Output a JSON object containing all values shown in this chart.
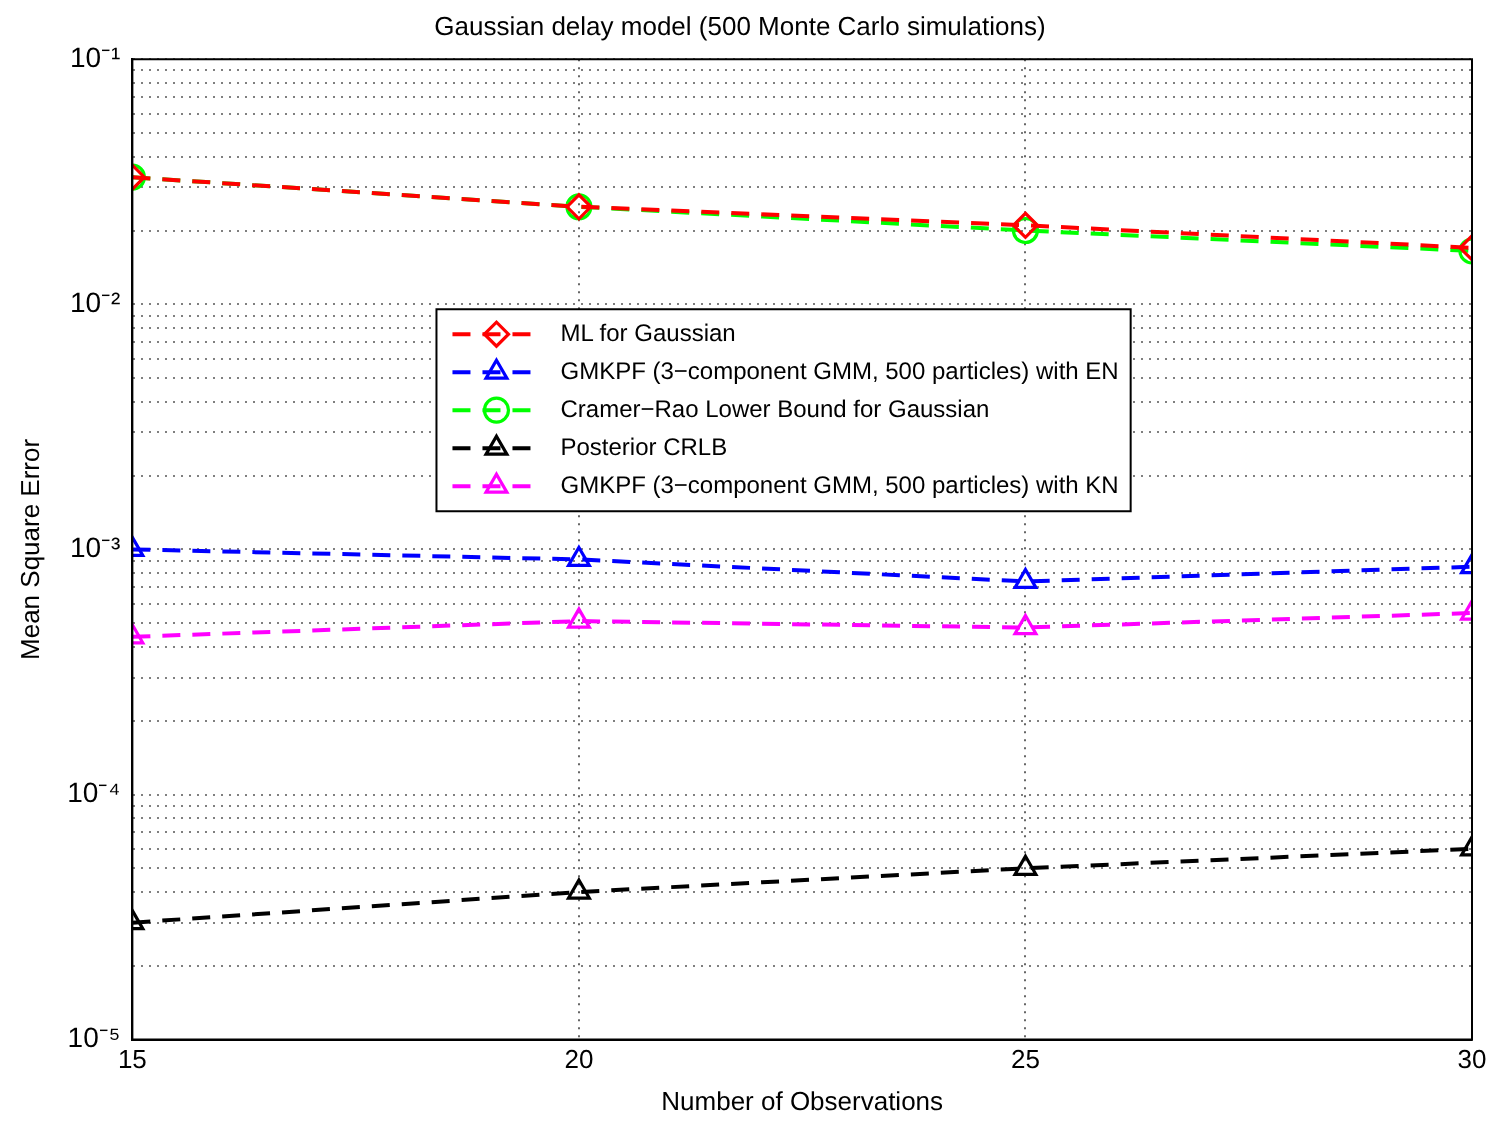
{
  "chart_data": {
    "type": "line",
    "title": "Gaussian delay model (500 Monte Carlo simulations)",
    "xlabel": "Number of Observations",
    "ylabel": "Mean Square Error",
    "x": [
      15,
      20,
      25,
      30
    ],
    "log": "y",
    "grid": true,
    "legend": "top",
    "line_style": "dashed",
    "xlim": [
      15,
      30
    ],
    "xticks": [
      15,
      20,
      25,
      30
    ],
    "ylim": [
      1e-05,
      0.1
    ],
    "yticks": [
      {
        "value": 1e-05,
        "label": "10⁻⁵"
      },
      {
        "value": 2e-05,
        "label": null
      },
      {
        "value": 3e-05,
        "label": null
      },
      {
        "value": 4e-05,
        "label": null
      },
      {
        "value": 5e-05,
        "label": null
      },
      {
        "value": 6e-05,
        "label": null
      },
      {
        "value": 7e-05,
        "label": null
      },
      {
        "value": 8e-05,
        "label": null
      },
      {
        "value": 9e-05,
        "label": null
      },
      {
        "value": 0.0001,
        "label": "10⁻⁴"
      },
      {
        "value": 0.0002,
        "label": null
      },
      {
        "value": 0.0003,
        "label": null
      },
      {
        "value": 0.0004,
        "label": null
      },
      {
        "value": 0.0005,
        "label": null
      },
      {
        "value": 0.0006,
        "label": null
      },
      {
        "value": 0.0007,
        "label": null
      },
      {
        "value": 0.0008,
        "label": null
      },
      {
        "value": 0.0009,
        "label": null
      },
      {
        "value": 0.001,
        "label": "10⁻³"
      },
      {
        "value": 0.002,
        "label": null
      },
      {
        "value": 0.003,
        "label": null
      },
      {
        "value": 0.004,
        "label": null
      },
      {
        "value": 0.005,
        "label": null
      },
      {
        "value": 0.006,
        "label": null
      },
      {
        "value": 0.007,
        "label": null
      },
      {
        "value": 0.008,
        "label": null
      },
      {
        "value": 0.009,
        "label": null
      },
      {
        "value": 0.01,
        "label": "10⁻²"
      },
      {
        "value": 0.02,
        "label": null
      },
      {
        "value": 0.03,
        "label": null
      },
      {
        "value": 0.04,
        "label": null
      },
      {
        "value": 0.05,
        "label": null
      },
      {
        "value": 0.06,
        "label": null
      },
      {
        "value": 0.07,
        "label": null
      },
      {
        "value": 0.08,
        "label": null
      },
      {
        "value": 0.09,
        "label": null
      },
      {
        "value": 0.1,
        "label": "10⁻¹"
      }
    ],
    "series": [
      {
        "name": "ML for Gaussian",
        "color": "#ff0000",
        "marker": "diamond",
        "values": [
          0.033,
          0.025,
          0.021,
          0.017
        ]
      },
      {
        "name": "GMKPF (3−component GMM, 500 particles) with EN",
        "color": "#0000ff",
        "marker": "triangle",
        "values": [
          0.001,
          0.00091,
          0.00074,
          0.00085
        ]
      },
      {
        "name": "Cramer−Rao Lower Bound for Gaussian",
        "color": "#00ff00",
        "marker": "circle",
        "values": [
          0.033,
          0.025,
          0.02,
          0.0165
        ]
      },
      {
        "name": "Posterior CRLB",
        "color": "#000000",
        "marker": "triangle",
        "values": [
          3e-05,
          4e-05,
          5e-05,
          6e-05
        ]
      },
      {
        "name": "GMKPF (3−component GMM, 500 particles) with KN",
        "color": "#ff00ff",
        "marker": "triangle",
        "values": [
          0.00044,
          0.00051,
          0.00048,
          0.00055
        ]
      }
    ]
  }
}
